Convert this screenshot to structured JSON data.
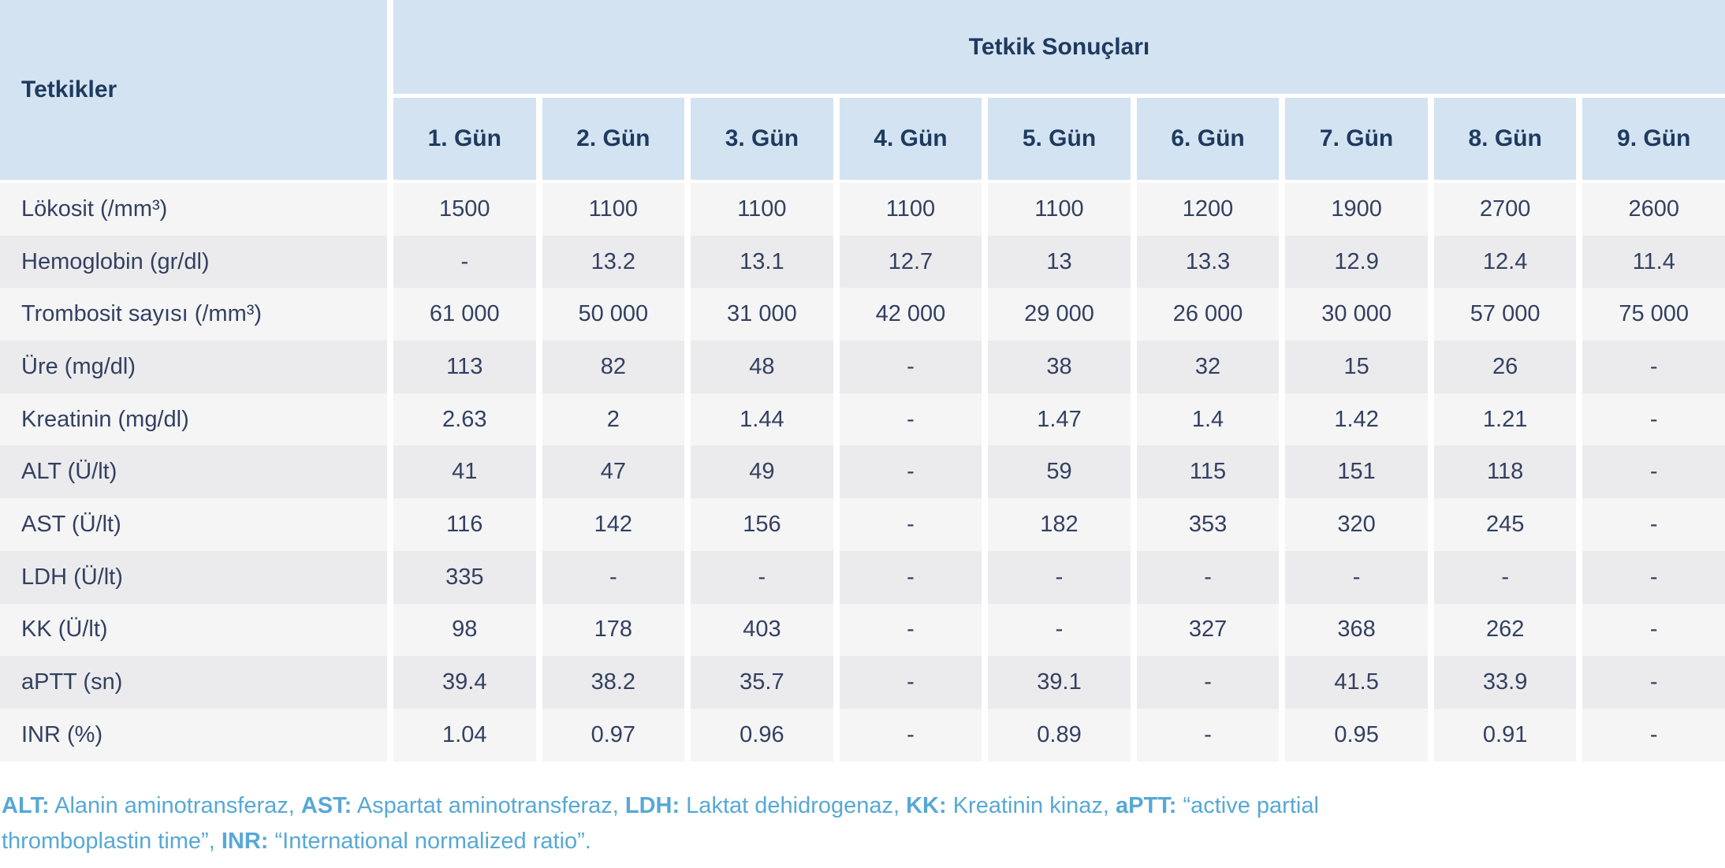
{
  "table": {
    "corner_header": "Tetkikler",
    "group_header": "Tetkik Sonuçları",
    "day_headers": [
      "1. Gün",
      "2. Gün",
      "3. Gün",
      "4. Gün",
      "5. Gün",
      "6. Gün",
      "7. Gün",
      "8. Gün",
      "9. Gün"
    ],
    "rows": [
      {
        "label": "Lökosit (/mm³)",
        "values": [
          "1500",
          "1100",
          "1100",
          "1100",
          "1100",
          "1200",
          "1900",
          "2700",
          "2600"
        ]
      },
      {
        "label": "Hemoglobin (gr/dl)",
        "values": [
          "-",
          "13.2",
          "13.1",
          "12.7",
          "13",
          "13.3",
          "12.9",
          "12.4",
          "11.4"
        ]
      },
      {
        "label": "Trombosit sayısı (/mm³)",
        "values": [
          "61 000",
          "50 000",
          "31 000",
          "42 000",
          "29 000",
          "26 000",
          "30 000",
          "57 000",
          "75 000"
        ]
      },
      {
        "label": "Üre (mg/dl)",
        "values": [
          "113",
          "82",
          "48",
          "-",
          "38",
          "32",
          "15",
          "26",
          "-"
        ]
      },
      {
        "label": "Kreatinin (mg/dl)",
        "values": [
          "2.63",
          "2",
          "1.44",
          "-",
          "1.47",
          "1.4",
          "1.42",
          "1.21",
          "-"
        ]
      },
      {
        "label": "ALT (Ü/lt)",
        "values": [
          "41",
          "47",
          "49",
          "-",
          "59",
          "115",
          "151",
          "118",
          "-"
        ]
      },
      {
        "label": "AST (Ü/lt)",
        "values": [
          "116",
          "142",
          "156",
          "-",
          "182",
          "353",
          "320",
          "245",
          "-"
        ]
      },
      {
        "label": "LDH (Ü/lt)",
        "values": [
          "335",
          "-",
          "-",
          "-",
          "-",
          "-",
          "-",
          "-",
          "-"
        ]
      },
      {
        "label": "KK (Ü/lt)",
        "values": [
          "98",
          "178",
          "403",
          "-",
          "-",
          "327",
          "368",
          "262",
          "-"
        ]
      },
      {
        "label": "aPTT (sn)",
        "values": [
          "39.4",
          "38.2",
          "35.7",
          "-",
          "39.1",
          "-",
          "41.5",
          "33.9",
          "-"
        ]
      },
      {
        "label": "INR (%)",
        "values": [
          "1.04",
          "0.97",
          "0.96",
          "-",
          "0.89",
          "-",
          "0.95",
          "0.91",
          "-"
        ]
      }
    ]
  },
  "footnote": {
    "lines": [
      {
        "segments": [
          {
            "b": "ALT:"
          },
          {
            "t": " Alanin aminotransferaz, "
          },
          {
            "b": "AST:"
          },
          {
            "t": " Aspartat aminotransferaz, "
          },
          {
            "b": "LDH:"
          },
          {
            "t": " Laktat dehidrogenaz, "
          },
          {
            "b": "KK:"
          },
          {
            "t": " Kreatinin kinaz, "
          },
          {
            "b": "aPTT:"
          },
          {
            "t": " “active partial"
          }
        ]
      },
      {
        "segments": [
          {
            "t": "thromboplastin time”, "
          },
          {
            "b": "INR:"
          },
          {
            "t": " “International normalized ratio”."
          }
        ]
      }
    ]
  }
}
